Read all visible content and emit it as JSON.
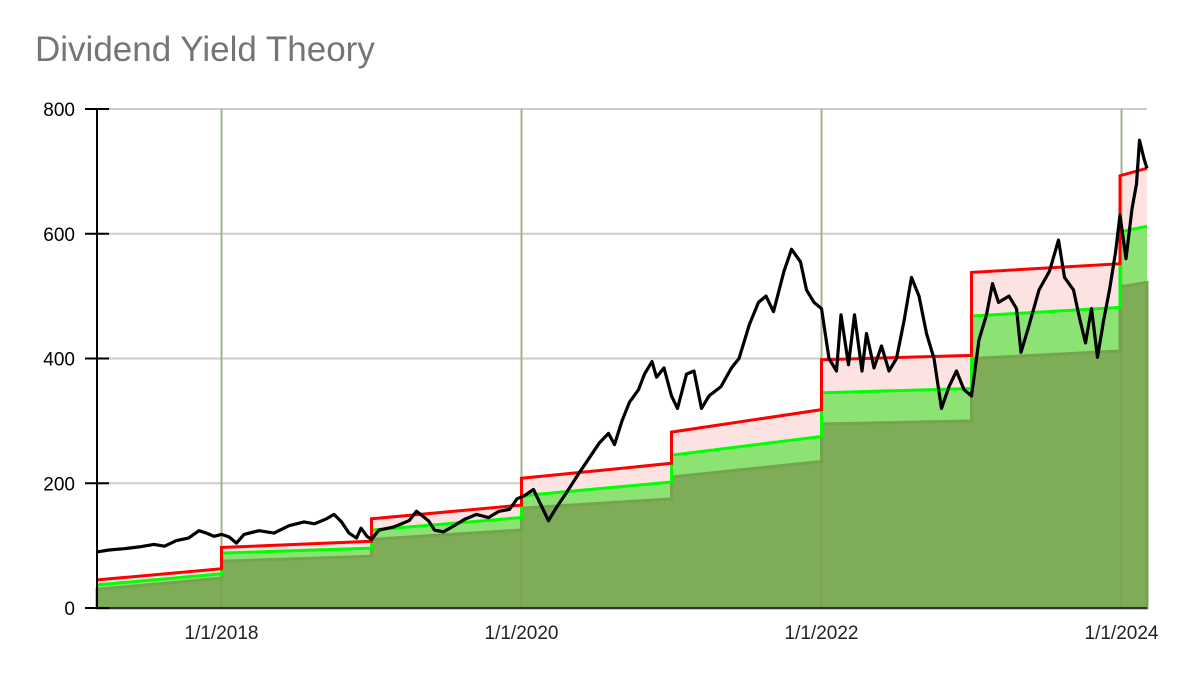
{
  "title": "Dividend Yield Theory",
  "chart_data": {
    "type": "area",
    "title": "Dividend Yield Theory",
    "xlabel": "",
    "ylabel": "",
    "ylim": [
      0,
      800
    ],
    "yticks": [
      0,
      200,
      400,
      600,
      800
    ],
    "xticks": [
      {
        "label": "1/1/2018",
        "x": 2018.0
      },
      {
        "label": "1/1/2020",
        "x": 2020.0
      },
      {
        "label": "1/1/2022",
        "x": 2022.0
      },
      {
        "label": "1/1/2024",
        "x": 2024.0
      }
    ],
    "xlim": [
      2017.17,
      2024.17
    ],
    "grid": true,
    "legend": "none",
    "colors": {
      "undervalued_band": "#7fac56",
      "fair_band": "#8de274",
      "overvalued_band": "#fde2e2",
      "green_line": "#00ff00",
      "red_line": "#ff0000",
      "price_line": "#000000",
      "grid": "#cccccc",
      "title": "#757575"
    },
    "series": [
      {
        "name": "Undervalued (dark green area)",
        "segments": [
          {
            "x0": 2017.17,
            "x1": 2018.0,
            "y0": 30,
            "y1": 48
          },
          {
            "x0": 2018.0,
            "x1": 2019.0,
            "y0": 75,
            "y1": 83
          },
          {
            "x0": 2019.0,
            "x1": 2020.0,
            "y0": 110,
            "y1": 125
          },
          {
            "x0": 2020.0,
            "x1": 2021.0,
            "y0": 160,
            "y1": 175
          },
          {
            "x0": 2021.0,
            "x1": 2022.0,
            "y0": 210,
            "y1": 235
          },
          {
            "x0": 2022.0,
            "x1": 2023.0,
            "y0": 295,
            "y1": 300
          },
          {
            "x0": 2023.0,
            "x1": 2023.99,
            "y0": 400,
            "y1": 412
          },
          {
            "x0": 2023.99,
            "x1": 2024.17,
            "y0": 515,
            "y1": 522
          }
        ]
      },
      {
        "name": "Fair value (green line)",
        "segments": [
          {
            "x0": 2017.17,
            "x1": 2018.0,
            "y0": 37,
            "y1": 55
          },
          {
            "x0": 2018.0,
            "x1": 2019.0,
            "y0": 88,
            "y1": 96
          },
          {
            "x0": 2019.0,
            "x1": 2020.0,
            "y0": 125,
            "y1": 145
          },
          {
            "x0": 2020.0,
            "x1": 2021.0,
            "y0": 180,
            "y1": 202
          },
          {
            "x0": 2021.0,
            "x1": 2022.0,
            "y0": 245,
            "y1": 275
          },
          {
            "x0": 2022.0,
            "x1": 2023.0,
            "y0": 345,
            "y1": 352
          },
          {
            "x0": 2023.0,
            "x1": 2023.99,
            "y0": 468,
            "y1": 482
          },
          {
            "x0": 2023.99,
            "x1": 2024.17,
            "y0": 603,
            "y1": 612
          }
        ]
      },
      {
        "name": "Overvalued (red line)",
        "segments": [
          {
            "x0": 2017.17,
            "x1": 2018.0,
            "y0": 45,
            "y1": 63
          },
          {
            "x0": 2018.0,
            "x1": 2019.0,
            "y0": 97,
            "y1": 107
          },
          {
            "x0": 2019.0,
            "x1": 2020.0,
            "y0": 143,
            "y1": 165
          },
          {
            "x0": 2020.0,
            "x1": 2021.0,
            "y0": 208,
            "y1": 232
          },
          {
            "x0": 2021.0,
            "x1": 2022.0,
            "y0": 282,
            "y1": 318
          },
          {
            "x0": 2022.0,
            "x1": 2023.0,
            "y0": 398,
            "y1": 405
          },
          {
            "x0": 2023.0,
            "x1": 2023.99,
            "y0": 538,
            "y1": 552
          },
          {
            "x0": 2023.99,
            "x1": 2024.17,
            "y0": 693,
            "y1": 705
          }
        ]
      },
      {
        "name": "Price (black line)",
        "points": [
          [
            2017.17,
            90
          ],
          [
            2017.25,
            93
          ],
          [
            2017.35,
            95
          ],
          [
            2017.45,
            98
          ],
          [
            2017.55,
            102
          ],
          [
            2017.62,
            99
          ],
          [
            2017.7,
            108
          ],
          [
            2017.78,
            112
          ],
          [
            2017.85,
            124
          ],
          [
            2017.9,
            120
          ],
          [
            2017.95,
            115
          ],
          [
            2018.0,
            118
          ],
          [
            2018.05,
            114
          ],
          [
            2018.1,
            104
          ],
          [
            2018.15,
            118
          ],
          [
            2018.25,
            124
          ],
          [
            2018.35,
            120
          ],
          [
            2018.45,
            132
          ],
          [
            2018.55,
            138
          ],
          [
            2018.62,
            135
          ],
          [
            2018.7,
            143
          ],
          [
            2018.75,
            150
          ],
          [
            2018.8,
            138
          ],
          [
            2018.85,
            120
          ],
          [
            2018.9,
            112
          ],
          [
            2018.93,
            128
          ],
          [
            2018.97,
            115
          ],
          [
            2019.0,
            110
          ],
          [
            2019.05,
            125
          ],
          [
            2019.15,
            130
          ],
          [
            2019.25,
            140
          ],
          [
            2019.3,
            155
          ],
          [
            2019.38,
            140
          ],
          [
            2019.42,
            125
          ],
          [
            2019.48,
            122
          ],
          [
            2019.55,
            132
          ],
          [
            2019.62,
            142
          ],
          [
            2019.7,
            150
          ],
          [
            2019.78,
            145
          ],
          [
            2019.85,
            155
          ],
          [
            2019.92,
            158
          ],
          [
            2019.97,
            175
          ],
          [
            2020.02,
            180
          ],
          [
            2020.08,
            190
          ],
          [
            2020.12,
            170
          ],
          [
            2020.18,
            140
          ],
          [
            2020.23,
            160
          ],
          [
            2020.3,
            185
          ],
          [
            2020.38,
            215
          ],
          [
            2020.45,
            240
          ],
          [
            2020.52,
            265
          ],
          [
            2020.58,
            280
          ],
          [
            2020.62,
            262
          ],
          [
            2020.67,
            300
          ],
          [
            2020.72,
            330
          ],
          [
            2020.78,
            350
          ],
          [
            2020.82,
            375
          ],
          [
            2020.87,
            395
          ],
          [
            2020.9,
            370
          ],
          [
            2020.95,
            385
          ],
          [
            2021.0,
            340
          ],
          [
            2021.04,
            320
          ],
          [
            2021.1,
            375
          ],
          [
            2021.15,
            380
          ],
          [
            2021.2,
            320
          ],
          [
            2021.25,
            340
          ],
          [
            2021.33,
            355
          ],
          [
            2021.4,
            385
          ],
          [
            2021.45,
            400
          ],
          [
            2021.52,
            455
          ],
          [
            2021.58,
            490
          ],
          [
            2021.63,
            500
          ],
          [
            2021.68,
            475
          ],
          [
            2021.75,
            540
          ],
          [
            2021.8,
            575
          ],
          [
            2021.86,
            555
          ],
          [
            2021.9,
            510
          ],
          [
            2021.95,
            490
          ],
          [
            2022.0,
            480
          ],
          [
            2022.05,
            400
          ],
          [
            2022.1,
            380
          ],
          [
            2022.13,
            470
          ],
          [
            2022.18,
            390
          ],
          [
            2022.22,
            470
          ],
          [
            2022.27,
            380
          ],
          [
            2022.3,
            440
          ],
          [
            2022.35,
            385
          ],
          [
            2022.4,
            420
          ],
          [
            2022.45,
            380
          ],
          [
            2022.5,
            400
          ],
          [
            2022.55,
            460
          ],
          [
            2022.6,
            530
          ],
          [
            2022.65,
            500
          ],
          [
            2022.7,
            440
          ],
          [
            2022.75,
            400
          ],
          [
            2022.8,
            320
          ],
          [
            2022.85,
            355
          ],
          [
            2022.9,
            380
          ],
          [
            2022.95,
            350
          ],
          [
            2023.0,
            340
          ],
          [
            2023.05,
            430
          ],
          [
            2023.1,
            470
          ],
          [
            2023.14,
            520
          ],
          [
            2023.18,
            490
          ],
          [
            2023.25,
            500
          ],
          [
            2023.3,
            480
          ],
          [
            2023.33,
            410
          ],
          [
            2023.38,
            450
          ],
          [
            2023.45,
            510
          ],
          [
            2023.52,
            540
          ],
          [
            2023.58,
            590
          ],
          [
            2023.62,
            530
          ],
          [
            2023.68,
            510
          ],
          [
            2023.72,
            465
          ],
          [
            2023.76,
            425
          ],
          [
            2023.8,
            480
          ],
          [
            2023.84,
            402
          ],
          [
            2023.88,
            460
          ],
          [
            2023.92,
            510
          ],
          [
            2023.96,
            570
          ],
          [
            2023.99,
            630
          ],
          [
            2024.03,
            560
          ],
          [
            2024.07,
            640
          ],
          [
            2024.1,
            680
          ],
          [
            2024.12,
            750
          ],
          [
            2024.15,
            720
          ],
          [
            2024.17,
            705
          ]
        ]
      }
    ]
  }
}
